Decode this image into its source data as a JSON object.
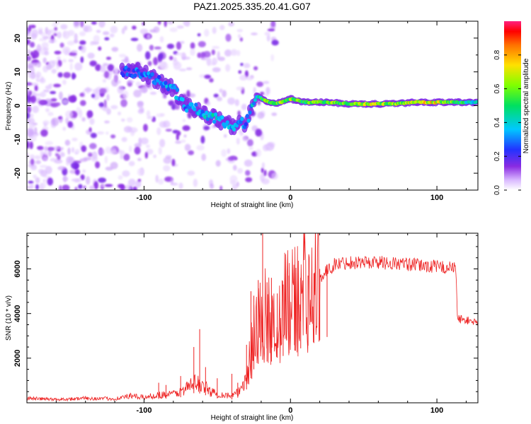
{
  "title": "PAZ1.2025.335.20.41.G07",
  "colors": {
    "snr_line": "#ee2222",
    "axes": "#000000",
    "background": "#ffffff"
  },
  "chart_data": [
    {
      "type": "heatmap",
      "title": "PAZ1.2025.335.20.41.G07",
      "xlabel": "Height of straight line (km)",
      "ylabel": "Frequency (Hz)",
      "xlim": [
        -180,
        128
      ],
      "ylim": [
        -25,
        25
      ],
      "xticks": [
        -100,
        0,
        100
      ],
      "xtick_labels": [
        "-100",
        "0",
        "100"
      ],
      "yticks": [
        -20,
        -10,
        0,
        10,
        20
      ],
      "ytick_labels": [
        "-20",
        "-10",
        "0",
        "10",
        "20"
      ],
      "colorbar": {
        "label": "Normalized spectral amplitude",
        "range": [
          0,
          1
        ],
        "ticks": [
          0.0,
          0.2,
          0.4,
          0.6,
          0.8
        ],
        "tick_labels": [
          "0.0",
          "0.2",
          "0.4",
          "0.6",
          "0.8"
        ],
        "colormap": "rainbow"
      },
      "ridge": [
        {
          "x": -115,
          "y": 10,
          "amp": 0.25
        },
        {
          "x": -100,
          "y": 10,
          "amp": 0.3
        },
        {
          "x": -90,
          "y": 7,
          "amp": 0.3
        },
        {
          "x": -80,
          "y": 5,
          "amp": 0.35
        },
        {
          "x": -72,
          "y": 0,
          "amp": 0.3
        },
        {
          "x": -60,
          "y": -2,
          "amp": 0.35
        },
        {
          "x": -50,
          "y": -4,
          "amp": 0.4
        },
        {
          "x": -40,
          "y": -6,
          "amp": 0.35
        },
        {
          "x": -30,
          "y": -5,
          "amp": 0.3
        },
        {
          "x": -23,
          "y": 3,
          "amp": 0.4
        },
        {
          "x": -18,
          "y": 1.5,
          "amp": 0.55
        },
        {
          "x": -10,
          "y": 0.5,
          "amp": 0.6
        },
        {
          "x": 0,
          "y": 2,
          "amp": 0.6
        },
        {
          "x": 10,
          "y": 1,
          "amp": 0.55
        },
        {
          "x": 25,
          "y": 1,
          "amp": 0.6
        },
        {
          "x": 40,
          "y": 0.5,
          "amp": 0.6
        },
        {
          "x": 55,
          "y": 0.5,
          "amp": 0.65
        },
        {
          "x": 70,
          "y": 0.5,
          "amp": 0.6
        },
        {
          "x": 85,
          "y": 1,
          "amp": 0.7
        },
        {
          "x": 100,
          "y": 1,
          "amp": 0.7
        },
        {
          "x": 115,
          "y": 1,
          "amp": 0.5
        },
        {
          "x": 128,
          "y": 1,
          "amp": 0.4
        }
      ]
    },
    {
      "type": "line",
      "xlabel": "Height of straight line (km)",
      "ylabel": "SNR (10 * v/v)",
      "xlim": [
        -180,
        128
      ],
      "ylim": [
        0,
        7600
      ],
      "xticks": [
        -100,
        0,
        100
      ],
      "xtick_labels": [
        "-100",
        "0",
        "100"
      ],
      "yticks": [
        2000,
        4000,
        6000
      ],
      "ytick_labels": [
        "2000",
        "4000",
        "6000"
      ],
      "series": [
        {
          "name": "SNR",
          "x": [
            -180,
            -160,
            -140,
            -120,
            -110,
            -100,
            -90,
            -80,
            -75,
            -70,
            -65,
            -60,
            -55,
            -50,
            -45,
            -40,
            -35,
            -30,
            -27,
            -25,
            -22,
            -20,
            -18,
            -16,
            -14,
            -12,
            -10,
            -5,
            0,
            5,
            10,
            15,
            20,
            25,
            30,
            40,
            50,
            60,
            70,
            80,
            90,
            100,
            110,
            113,
            114,
            116,
            120,
            128
          ],
          "y": [
            200,
            150,
            200,
            180,
            300,
            250,
            350,
            400,
            500,
            700,
            900,
            800,
            500,
            400,
            350,
            300,
            500,
            1200,
            2200,
            3000,
            3500,
            3700,
            4000,
            3700,
            3800,
            3600,
            4000,
            4200,
            4500,
            4800,
            5000,
            5300,
            5600,
            5900,
            6200,
            6300,
            6300,
            6300,
            6250,
            6200,
            6150,
            6100,
            6050,
            6000,
            3800,
            3750,
            3700,
            3600
          ]
        }
      ],
      "spikes": [
        {
          "x": -90,
          "y": 900
        },
        {
          "x": -85,
          "y": 800
        },
        {
          "x": -75,
          "y": 1200
        },
        {
          "x": -66,
          "y": 2500
        },
        {
          "x": -62,
          "y": 3300
        },
        {
          "x": -58,
          "y": 1600
        },
        {
          "x": -50,
          "y": 1100
        },
        {
          "x": -40,
          "y": 1300
        },
        {
          "x": -36,
          "y": 900
        },
        {
          "x": -30,
          "y": 2600
        },
        {
          "x": -27,
          "y": 5000
        },
        {
          "x": -25,
          "y": 4800
        },
        {
          "x": -22,
          "y": 5500
        },
        {
          "x": -19,
          "y": 7600
        },
        {
          "x": -16,
          "y": 5400
        },
        {
          "x": -13,
          "y": 5600
        },
        {
          "x": -9,
          "y": 4900
        },
        {
          "x": -5,
          "y": 5300
        },
        {
          "x": -1,
          "y": 5700
        },
        {
          "x": 3,
          "y": 5300
        },
        {
          "x": 7,
          "y": 5600
        },
        {
          "x": 12,
          "y": 5700
        },
        {
          "x": 16,
          "y": 5800
        },
        {
          "x": 20,
          "y": 6000
        },
        {
          "x": 25,
          "y": 6200
        }
      ]
    }
  ]
}
